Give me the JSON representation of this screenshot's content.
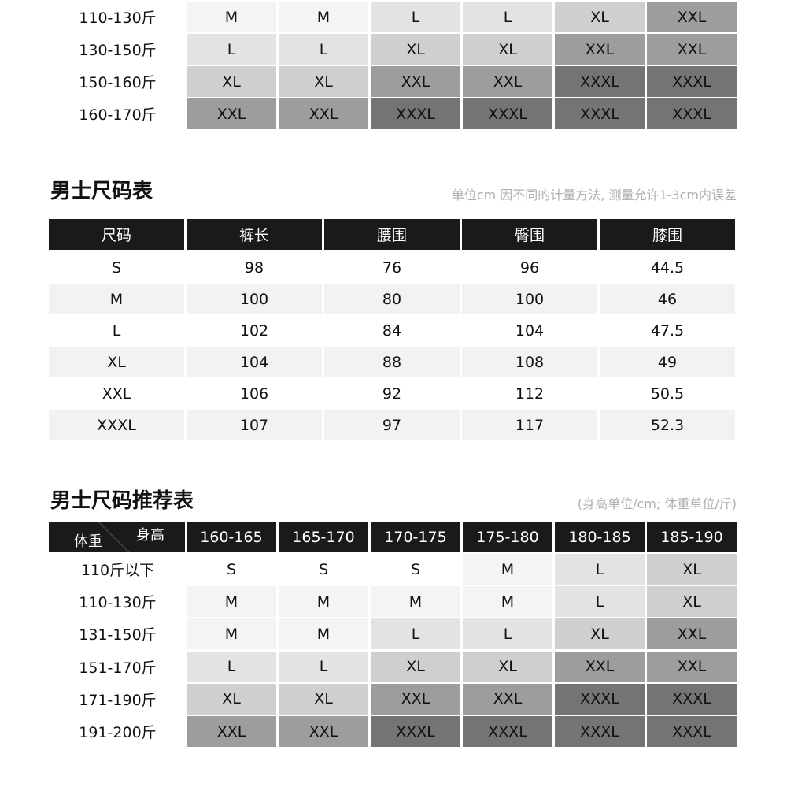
{
  "size_colors": {
    "S": "#ffffff",
    "M": "#f4f4f4",
    "L": "#e3e3e3",
    "XL": "#cfcfcf",
    "XXL": "#9d9d9d",
    "XXXL": "#747474"
  },
  "top_table": {
    "rows": [
      {
        "label": "110-130斤",
        "values": [
          "M",
          "M",
          "L",
          "L",
          "XL",
          "XXL"
        ]
      },
      {
        "label": "130-150斤",
        "values": [
          "L",
          "L",
          "XL",
          "XL",
          "XXL",
          "XXL"
        ]
      },
      {
        "label": "150-160斤",
        "values": [
          "XL",
          "XL",
          "XXL",
          "XXL",
          "XXXL",
          "XXXL"
        ]
      },
      {
        "label": "160-170斤",
        "values": [
          "XXL",
          "XXL",
          "XXXL",
          "XXXL",
          "XXXL",
          "XXXL"
        ]
      }
    ]
  },
  "size_chart": {
    "title": "男士尺码表",
    "note": "单位cm 因不同的计量方法, 测量允许1-3cm内误差",
    "headers": [
      "尺码",
      "裤长",
      "腰围",
      "臀围",
      "膝围"
    ],
    "rows": [
      [
        "S",
        "98",
        "76",
        "96",
        "44.5"
      ],
      [
        "M",
        "100",
        "80",
        "100",
        "46"
      ],
      [
        "L",
        "102",
        "84",
        "104",
        "47.5"
      ],
      [
        "XL",
        "104",
        "88",
        "108",
        "49"
      ],
      [
        "XXL",
        "106",
        "92",
        "112",
        "50.5"
      ],
      [
        "XXXL",
        "107",
        "97",
        "117",
        "52.3"
      ]
    ]
  },
  "recommend": {
    "title": "男士尺码推荐表",
    "note": "(身高单位/cm; 体重单位/斤)",
    "corner_weight": "体重",
    "corner_height": "身高",
    "headers": [
      "160-165",
      "165-170",
      "170-175",
      "175-180",
      "180-185",
      "185-190"
    ],
    "rows": [
      {
        "label": "110斤以下",
        "values": [
          "S",
          "S",
          "S",
          "M",
          "L",
          "XL"
        ]
      },
      {
        "label": "110-130斤",
        "values": [
          "M",
          "M",
          "M",
          "M",
          "L",
          "XL"
        ]
      },
      {
        "label": "131-150斤",
        "values": [
          "M",
          "M",
          "L",
          "L",
          "XL",
          "XXL"
        ]
      },
      {
        "label": "151-170斤",
        "values": [
          "L",
          "L",
          "XL",
          "XL",
          "XXL",
          "XXL"
        ]
      },
      {
        "label": "171-190斤",
        "values": [
          "XL",
          "XL",
          "XXL",
          "XXL",
          "XXXL",
          "XXXL"
        ]
      },
      {
        "label": "191-200斤",
        "values": [
          "XXL",
          "XXL",
          "XXXL",
          "XXXL",
          "XXXL",
          "XXXL"
        ]
      }
    ]
  }
}
